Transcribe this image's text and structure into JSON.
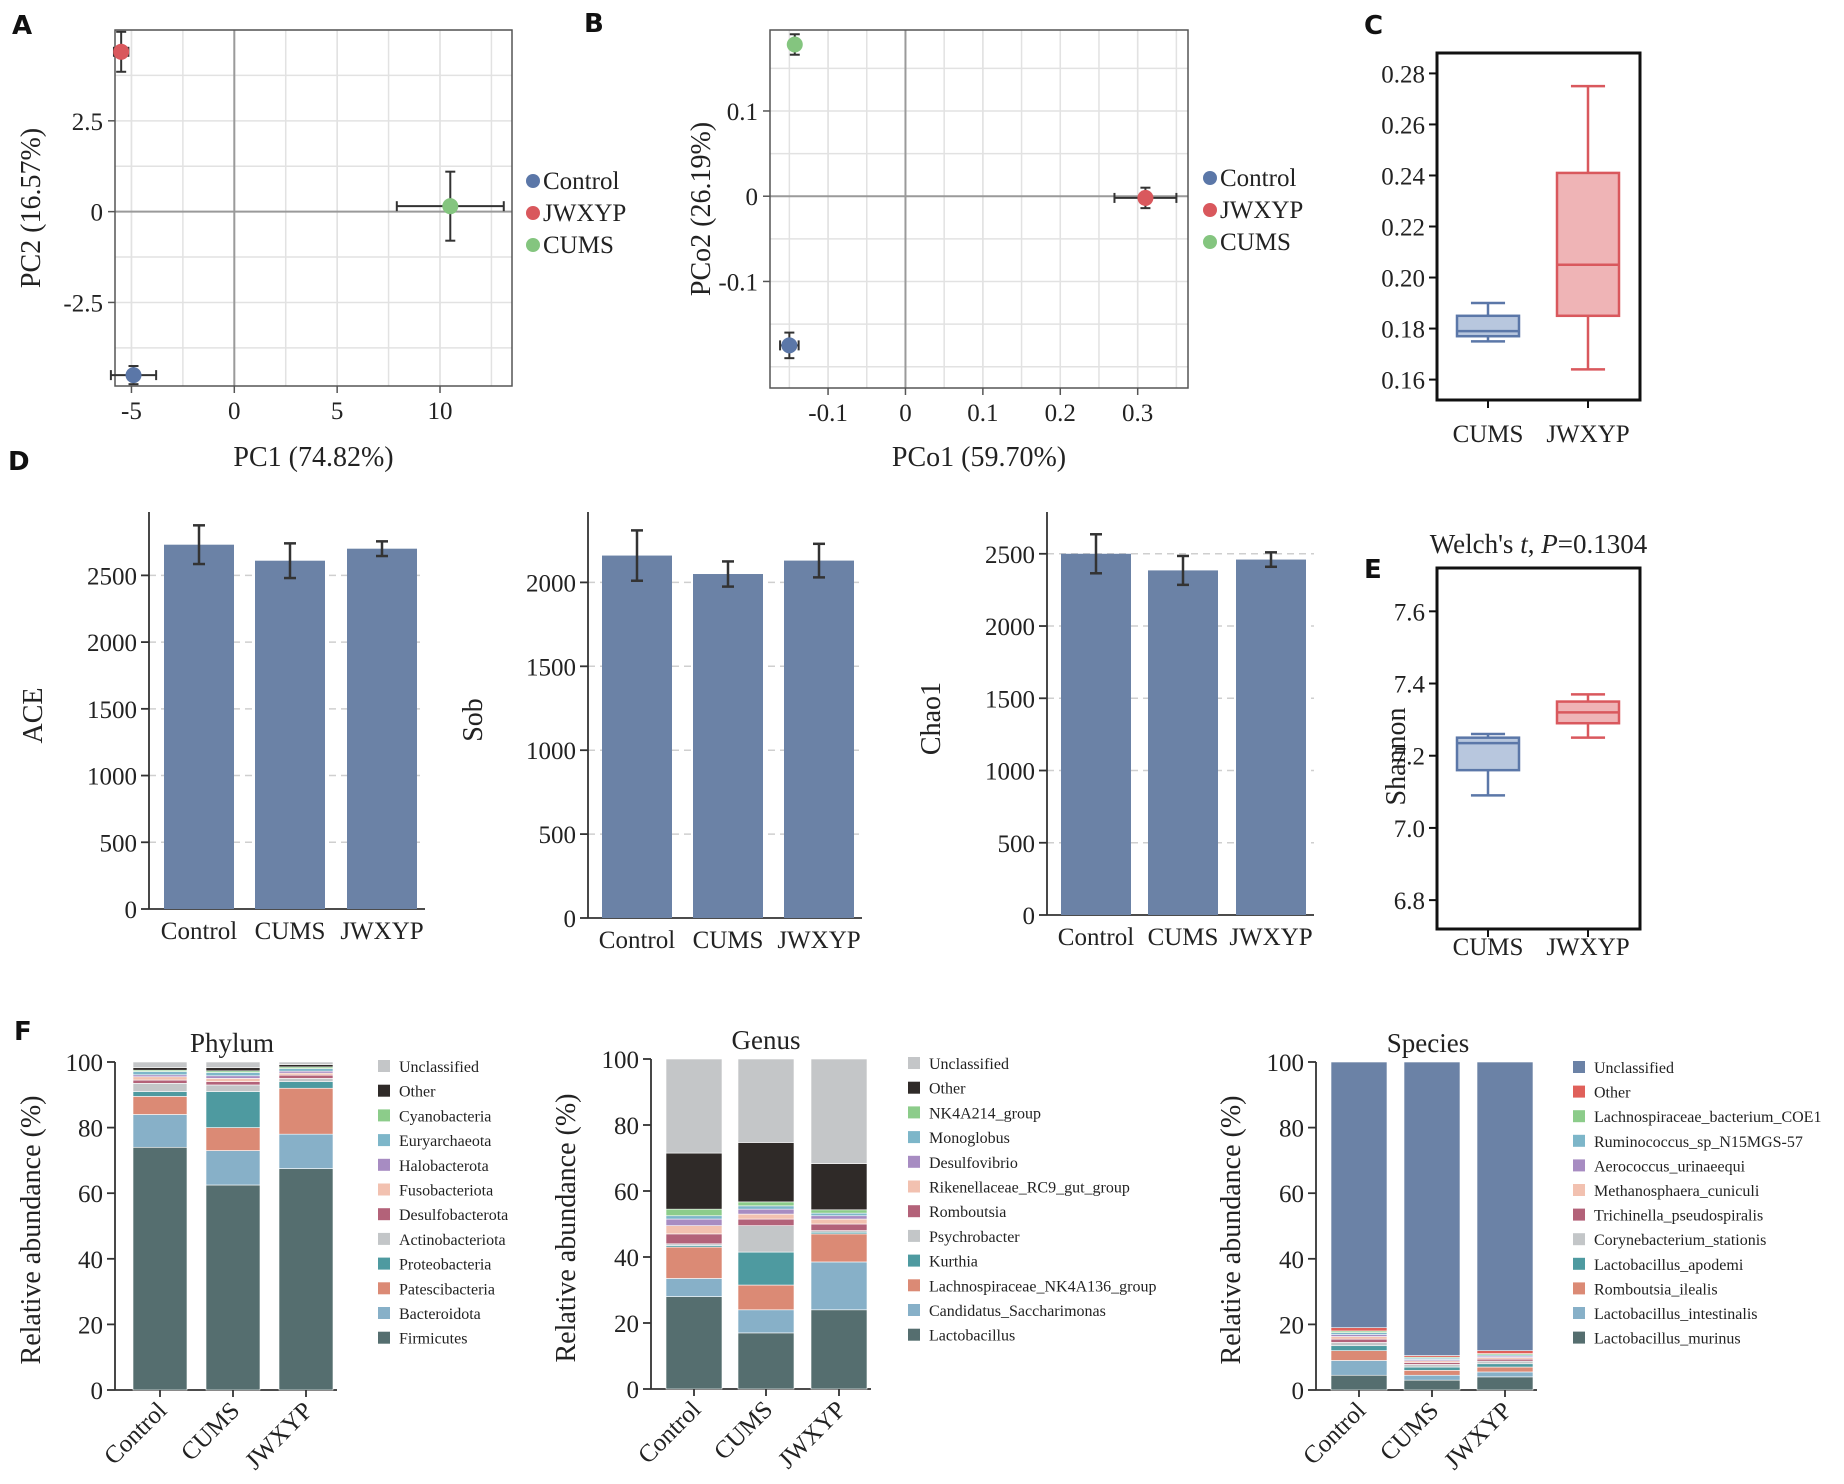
{
  "panel_letters": [
    "A",
    "B",
    "C",
    "D",
    "E",
    "F"
  ],
  "colors": {
    "control": "#5b77a8",
    "jwxyp": "#d9585d",
    "cums": "#84c57f",
    "bar": "#6b82a6",
    "box_cums_fill": "#b8c7de",
    "box_cums_line": "#5b77a8",
    "box_jwxyp_fill": "#efb4b6",
    "box_jwxyp_line": "#d9585d"
  },
  "chart_data": [
    {
      "id": "A",
      "type": "scatter",
      "xlabel": "PC1 (74.82%)",
      "ylabel": "PC2 (16.57%)",
      "xlim": [
        -5.8,
        13.5
      ],
      "ylim": [
        -4.8,
        5.0
      ],
      "xticks": [
        -5,
        0,
        5,
        10
      ],
      "xtick_labels": [
        "-5",
        "0",
        "5",
        "10"
      ],
      "yticks": [
        -2.5,
        0,
        2.5
      ],
      "ytick_labels": [
        "-2.5",
        "0",
        "2.5"
      ],
      "legend": [
        "Control",
        "JWXYP",
        "CUMS"
      ],
      "points": [
        {
          "name": "Control",
          "x": -4.9,
          "y": -4.5,
          "xerr": 1.1,
          "yerr": 0.25
        },
        {
          "name": "JWXYP",
          "x": -5.5,
          "y": 4.4,
          "xerr": 0.35,
          "yerr": 0.55
        },
        {
          "name": "CUMS",
          "x": 10.5,
          "y": 0.15,
          "xerr": 2.6,
          "yerr": 0.95
        }
      ]
    },
    {
      "id": "B",
      "type": "scatter",
      "xlabel": "PCo1 (59.70%)",
      "ylabel": "PCo2 (26.19%)",
      "xlim": [
        -0.175,
        0.365
      ],
      "ylim": [
        -0.225,
        0.195
      ],
      "xticks": [
        -0.1,
        0,
        0.1,
        0.2,
        0.3
      ],
      "xtick_labels": [
        "-0.1",
        "0",
        "0.1",
        "0.2",
        "0.3"
      ],
      "yticks": [
        -0.1,
        0,
        0.1
      ],
      "ytick_labels": [
        "-0.1",
        "0",
        "0.1"
      ],
      "legend": [
        "Control",
        "JWXYP",
        "CUMS"
      ],
      "points": [
        {
          "name": "Control",
          "x": -0.15,
          "y": -0.175,
          "xerr": 0.012,
          "yerr": 0.015
        },
        {
          "name": "JWXYP",
          "x": 0.31,
          "y": -0.002,
          "xerr": 0.04,
          "yerr": 0.012
        },
        {
          "name": "CUMS",
          "x": -0.143,
          "y": 0.178,
          "xerr": 0.004,
          "yerr": 0.012
        }
      ]
    },
    {
      "id": "C",
      "type": "box",
      "categories": [
        "CUMS",
        "JWXYP"
      ],
      "ylim": [
        0.152,
        0.288
      ],
      "yticks": [
        0.16,
        0.18,
        0.2,
        0.22,
        0.24,
        0.26,
        0.28
      ],
      "ytick_labels": [
        "0.16",
        "0.18",
        "0.20",
        "0.22",
        "0.24",
        "0.26",
        "0.28"
      ],
      "boxes": [
        {
          "name": "CUMS",
          "min": 0.175,
          "q1": 0.177,
          "median": 0.179,
          "q3": 0.185,
          "max": 0.19
        },
        {
          "name": "JWXYP",
          "min": 0.164,
          "q1": 0.185,
          "median": 0.205,
          "q3": 0.241,
          "max": 0.275
        }
      ]
    },
    {
      "id": "D1",
      "type": "bar",
      "categories": [
        "Control",
        "CUMS",
        "JWXYP"
      ],
      "values": [
        2730,
        2610,
        2700
      ],
      "errors": [
        145,
        130,
        55
      ],
      "ylabel": "ACE",
      "ylim": [
        0,
        2900
      ],
      "yticks": [
        0,
        500,
        1000,
        1500,
        2000,
        2500
      ],
      "ytick_labels": [
        "0",
        "500",
        "1000",
        "1500",
        "2000",
        "2500"
      ]
    },
    {
      "id": "D2",
      "type": "bar",
      "categories": [
        "Control",
        "CUMS",
        "JWXYP"
      ],
      "values": [
        2160,
        2050,
        2130
      ],
      "errors": [
        150,
        75,
        100
      ],
      "ylabel": "Sob",
      "ylim": [
        0,
        2360
      ],
      "yticks": [
        0,
        500,
        1000,
        1500,
        2000
      ],
      "ytick_labels": [
        "0",
        "500",
        "1000",
        "1500",
        "2000"
      ]
    },
    {
      "id": "D3",
      "type": "bar",
      "categories": [
        "Control",
        "CUMS",
        "JWXYP"
      ],
      "values": [
        2500,
        2385,
        2460
      ],
      "errors": [
        135,
        100,
        50
      ],
      "ylabel": "Chao1",
      "ylim": [
        0,
        2720
      ],
      "yticks": [
        0,
        500,
        1000,
        1500,
        2000,
        2500
      ],
      "ytick_labels": [
        "0",
        "500",
        "1000",
        "1500",
        "2000",
        "2500"
      ]
    },
    {
      "id": "E",
      "type": "box",
      "title": "Welch's ",
      "title_t": "t",
      "title_p_prefix": ", ",
      "title_p": "P",
      "title_p_value": "=0.1304",
      "categories": [
        "CUMS",
        "JWXYP"
      ],
      "ylabel": "Shannon",
      "ylim": [
        6.72,
        7.72
      ],
      "yticks": [
        6.8,
        7.0,
        7.2,
        7.4,
        7.6
      ],
      "ytick_labels": [
        "6.8",
        "7.0",
        "7.2",
        "7.4",
        "7.6"
      ],
      "boxes": [
        {
          "name": "CUMS",
          "min": 7.09,
          "q1": 7.16,
          "median": 7.235,
          "q3": 7.25,
          "max": 7.26
        },
        {
          "name": "JWXYP",
          "min": 7.25,
          "q1": 7.29,
          "median": 7.32,
          "q3": 7.35,
          "max": 7.37
        }
      ]
    },
    {
      "id": "F1",
      "type": "stacked-bar",
      "title": "Phylum",
      "ylabel": "Relative abundance (%)",
      "ylim": [
        0,
        100
      ],
      "yticks": [
        0,
        20,
        40,
        60,
        80,
        100
      ],
      "ytick_labels": [
        "0",
        "20",
        "40",
        "60",
        "80",
        "100"
      ],
      "categories": [
        "Control",
        "CUMS",
        "JWXYP"
      ],
      "legend_order": [
        "Unclassified",
        "Other",
        "Cyanobacteria",
        "Euryarchaeota",
        "Halobacterota",
        "Fusobacteriota",
        "Desulfobacterota",
        "Actinobacteriota",
        "Proteobacteria",
        "Patescibacteria",
        "Bacteroidota",
        "Firmicutes"
      ],
      "series": [
        {
          "name": "Firmicutes",
          "color": "#556e6f",
          "values": [
            74,
            62.5,
            67.5
          ]
        },
        {
          "name": "Bacteroidota",
          "color": "#87b0c8",
          "values": [
            10,
            10.5,
            10.5
          ]
        },
        {
          "name": "Patescibacteria",
          "color": "#db8a75",
          "values": [
            5.5,
            7,
            14
          ]
        },
        {
          "name": "Proteobacteria",
          "color": "#4e9aa0",
          "values": [
            1.5,
            11,
            2
          ]
        },
        {
          "name": "Actinobacteriota",
          "color": "#c3c6c8",
          "values": [
            2.5,
            2,
            1
          ]
        },
        {
          "name": "Desulfobacterota",
          "color": "#b36279",
          "values": [
            1,
            1,
            1
          ]
        },
        {
          "name": "Fusobacteriota",
          "color": "#f2c1b0",
          "values": [
            1,
            1,
            0.6
          ]
        },
        {
          "name": "Halobacterota",
          "color": "#a78cc2",
          "values": [
            0.6,
            0.8,
            0.6
          ]
        },
        {
          "name": "Euryarchaeota",
          "color": "#7db6c9",
          "values": [
            1,
            1,
            0.8
          ]
        },
        {
          "name": "Cyanobacteria",
          "color": "#8ccc8a",
          "values": [
            0.4,
            0.5,
            0.5
          ]
        },
        {
          "name": "Other",
          "color": "#2f2a28",
          "values": [
            0.8,
            1,
            0.7
          ]
        },
        {
          "name": "Unclassified",
          "color": "#c4c6c8",
          "values": [
            1.7,
            1.7,
            0.8
          ]
        }
      ]
    },
    {
      "id": "F2",
      "type": "stacked-bar",
      "title": "Genus",
      "ylabel": "Relative abundance (%)",
      "ylim": [
        0,
        100
      ],
      "yticks": [
        0,
        20,
        40,
        60,
        80,
        100
      ],
      "ytick_labels": [
        "0",
        "20",
        "40",
        "60",
        "80",
        "100"
      ],
      "categories": [
        "Control",
        "CUMS",
        "JWXYP"
      ],
      "legend_order": [
        "Unclassified",
        "Other",
        "NK4A214_group",
        "Monoglobus",
        "Desulfovibrio",
        "Rikenellaceae_RC9_gut_group",
        "Romboutsia",
        "Psychrobacter",
        "Kurthia",
        "Lachnospiraceae_NK4A136_group",
        "Candidatus_Saccharimonas",
        "Lactobacillus"
      ],
      "series": [
        {
          "name": "Lactobacillus",
          "color": "#556e6f",
          "values": [
            28,
            17,
            24
          ]
        },
        {
          "name": "Candidatus_Saccharimonas",
          "color": "#87b0c8",
          "values": [
            5.5,
            7,
            14.5
          ]
        },
        {
          "name": "Lachnospiraceae_NK4A136_group",
          "color": "#db8a75",
          "values": [
            9.5,
            7.5,
            8.5
          ]
        },
        {
          "name": "Kurthia",
          "color": "#4e9aa0",
          "values": [
            0.5,
            10,
            0.5
          ]
        },
        {
          "name": "Psychrobacter",
          "color": "#c3c6c8",
          "values": [
            0.5,
            8,
            0.5
          ]
        },
        {
          "name": "Romboutsia",
          "color": "#b36279",
          "values": [
            3,
            2,
            2
          ]
        },
        {
          "name": "Rikenellaceae_RC9_gut_group",
          "color": "#f2c1b0",
          "values": [
            2.5,
            1.5,
            1.5
          ]
        },
        {
          "name": "Desulfovibrio",
          "color": "#a78cc2",
          "values": [
            2,
            1.5,
            1
          ]
        },
        {
          "name": "Monoglobus",
          "color": "#7db6c9",
          "values": [
            1,
            1,
            0.8
          ]
        },
        {
          "name": "NK4A214_group",
          "color": "#8ccc8a",
          "values": [
            2,
            1.2,
            1
          ]
        },
        {
          "name": "Other",
          "color": "#2f2a28",
          "values": [
            17,
            18,
            14
          ]
        },
        {
          "name": "Unclassified",
          "color": "#c4c6c8",
          "values": [
            28.5,
            25.3,
            31.7
          ]
        }
      ]
    },
    {
      "id": "F3",
      "type": "stacked-bar",
      "title": "Species",
      "ylabel": "Relative abundance (%)",
      "ylim": [
        0,
        100
      ],
      "yticks": [
        0,
        20,
        40,
        60,
        80,
        100
      ],
      "ytick_labels": [
        "0",
        "20",
        "40",
        "60",
        "80",
        "100"
      ],
      "categories": [
        "Control",
        "CUMS",
        "JWXYP"
      ],
      "legend_order": [
        "Unclassified",
        "Other",
        "Lachnospiraceae_bacterium_COE1",
        "Ruminococcus_sp_N15MGS-57",
        "Aerococcus_urinaeequi",
        "Methanosphaera_cuniculi",
        "Trichinella_pseudospiralis",
        "Corynebacterium_stationis",
        "Lactobacillus_apodemi",
        "Romboutsia_ilealis",
        "Lactobacillus_intestinalis",
        "Lactobacillus_murinus"
      ],
      "series": [
        {
          "name": "Lactobacillus_murinus",
          "color": "#556e6f",
          "values": [
            4.5,
            3,
            4
          ]
        },
        {
          "name": "Lactobacillus_intestinalis",
          "color": "#87b0c8",
          "values": [
            4.5,
            1.5,
            1.5
          ]
        },
        {
          "name": "Romboutsia_ilealis",
          "color": "#db8a75",
          "values": [
            3,
            1.5,
            1.5
          ]
        },
        {
          "name": "Lactobacillus_apodemi",
          "color": "#4e9aa0",
          "values": [
            1.5,
            1,
            1
          ]
        },
        {
          "name": "Corynebacterium_stationis",
          "color": "#c3c6c8",
          "values": [
            1,
            0.8,
            0.8
          ]
        },
        {
          "name": "Trichinella_pseudospiralis",
          "color": "#b36279",
          "values": [
            1,
            0.6,
            0.6
          ]
        },
        {
          "name": "Methanosphaera_cuniculi",
          "color": "#f2c1b0",
          "values": [
            0.8,
            0.5,
            0.5
          ]
        },
        {
          "name": "Aerococcus_urinaeequi",
          "color": "#a78cc2",
          "values": [
            0.6,
            0.4,
            0.4
          ]
        },
        {
          "name": "Ruminococcus_sp_N15MGS-57",
          "color": "#7db6c9",
          "values": [
            0.6,
            0.4,
            0.4
          ]
        },
        {
          "name": "Lachnospiraceae_bacterium_COE1",
          "color": "#8ccc8a",
          "values": [
            0.5,
            0.3,
            0.4
          ]
        },
        {
          "name": "Other",
          "color": "#e0605a",
          "values": [
            1,
            0.5,
            0.9
          ]
        },
        {
          "name": "Unclassified",
          "color": "#6b82a6",
          "values": [
            81,
            89.5,
            88
          ]
        }
      ]
    }
  ]
}
